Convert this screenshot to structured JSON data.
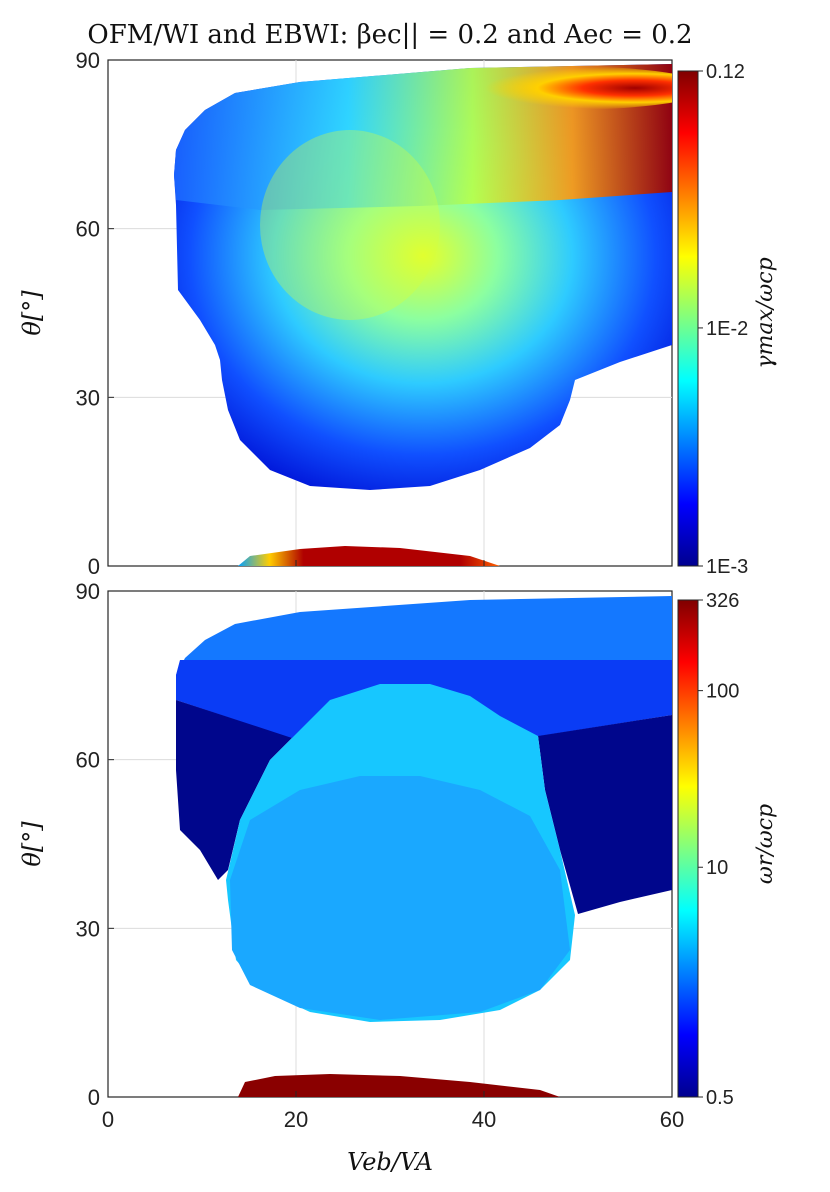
{
  "figure_title": "OFM/WI and EBWI: βec|| = 0.2 and Aec = 0.2",
  "xlabel": "Veb/VA",
  "chart_data": [
    {
      "type": "heatmap",
      "panel": "top",
      "title": "OFM/WI and EBWI: βec|| = 0.2 and Aec = 0.2",
      "xlabel": "",
      "ylabel": "θ[°]",
      "xlim": [
        0,
        60
      ],
      "ylim": [
        0,
        90
      ],
      "x_ticks": [
        "0",
        "20",
        "40",
        "60"
      ],
      "y_ticks": [
        "0",
        "30",
        "60",
        "90"
      ],
      "x_ticks_shown": false,
      "grid": true,
      "colorbar": {
        "label": "γmax/ωcp",
        "scale": "log",
        "range": [
          0.001,
          0.12
        ],
        "ticks": [
          {
            "value": 0.12,
            "label": "0.12"
          },
          {
            "value": 0.01,
            "label": "1E-2"
          },
          {
            "value": 0.001,
            "label": "1E-3"
          }
        ],
        "colormap": "jet"
      },
      "regions": [
        {
          "name": "unstable-band-upper",
          "theta_range": [
            13,
            88
          ],
          "veb_range": [
            7,
            60
          ],
          "value_range": [
            0.001,
            0.12
          ],
          "peak": {
            "veb": 55,
            "theta": 87,
            "value": 0.12
          }
        },
        {
          "name": "unstable-band-lower",
          "theta_range": [
            0,
            3
          ],
          "veb_range": [
            14,
            50
          ],
          "value_range": [
            0.01,
            0.12
          ],
          "peak": {
            "veb": 25,
            "theta": 1,
            "value": 0.12
          }
        }
      ]
    },
    {
      "type": "heatmap",
      "panel": "bottom",
      "xlabel": "Veb/VA",
      "ylabel": "θ[°]",
      "xlim": [
        0,
        60
      ],
      "ylim": [
        0,
        90
      ],
      "x_ticks": [
        "0",
        "20",
        "40",
        "60"
      ],
      "y_ticks": [
        "0",
        "30",
        "60",
        "90"
      ],
      "grid": true,
      "colorbar": {
        "label": "ωr/ωcp",
        "scale": "log",
        "range": [
          0.5,
          326
        ],
        "ticks": [
          {
            "value": 326,
            "label": "326"
          },
          {
            "value": 100,
            "label": "100"
          },
          {
            "value": 10,
            "label": "10"
          },
          {
            "value": 0.5,
            "label": "0.5"
          }
        ],
        "colormap": "jet"
      },
      "regions": [
        {
          "name": "outer-band-upper",
          "theta_range": [
            73,
            88
          ],
          "veb_range": [
            12,
            60
          ],
          "value": 1.5
        },
        {
          "name": "middle-band",
          "theta_range": [
            62,
            76
          ],
          "veb_range": [
            7,
            60
          ],
          "value": 1.0
        },
        {
          "name": "side-lobes",
          "theta_range": [
            33,
            62
          ],
          "veb_range": [
            7,
            60
          ],
          "value": 0.5
        },
        {
          "name": "central-lobe",
          "theta_range": [
            13,
            73
          ],
          "veb_range": [
            13,
            50
          ],
          "value": 5
        },
        {
          "name": "low-angle-band",
          "theta_range": [
            0,
            3
          ],
          "veb_range": [
            14,
            50
          ],
          "value": 326
        }
      ]
    }
  ]
}
